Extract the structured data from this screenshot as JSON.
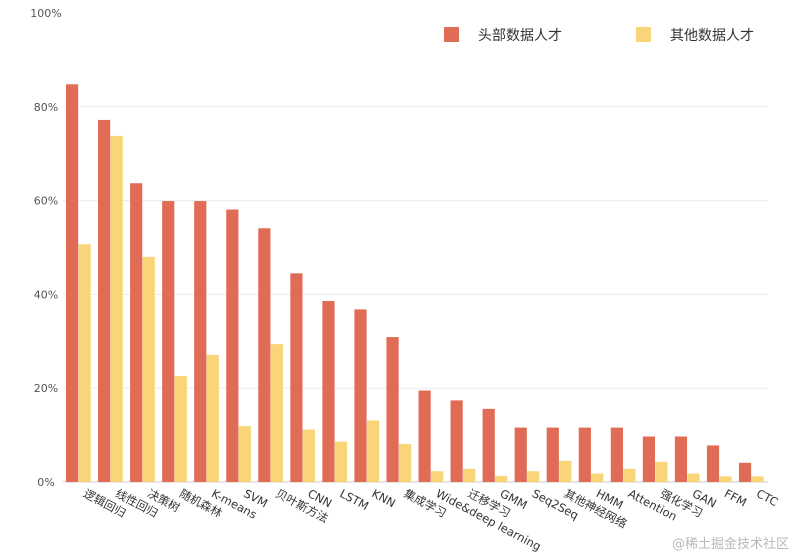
{
  "chart_data": {
    "type": "bar",
    "categories": [
      "逻辑回归",
      "线性回归",
      "决策树",
      "随机森林",
      "K-means",
      "SVM",
      "贝叶斯方法",
      "CNN",
      "LSTM",
      "KNN",
      "集成学习",
      "Wide&deep learning",
      "迁移学习",
      "GMM",
      "Seq2Seq",
      "其他神经网络",
      "HMM",
      "Attention",
      "强化学习",
      "GAN",
      "FFM",
      "CTC"
    ],
    "series": [
      {
        "name": "头部数据人才",
        "color": "#e06c55",
        "values": [
          84.8,
          77.2,
          63.7,
          59.9,
          59.9,
          58.1,
          54.1,
          44.5,
          38.6,
          36.8,
          30.9,
          19.5,
          17.4,
          15.6,
          11.6,
          11.6,
          11.6,
          11.6,
          9.7,
          9.7,
          7.8,
          4.1
        ]
      },
      {
        "name": "其他数据人才",
        "color": "#f9d57a",
        "values": [
          50.7,
          73.8,
          48.0,
          22.6,
          27.1,
          11.9,
          29.4,
          11.2,
          8.6,
          13.1,
          8.1,
          2.3,
          2.8,
          1.3,
          2.3,
          4.5,
          1.8,
          2.8,
          4.3,
          1.8,
          1.2,
          1.2
        ]
      }
    ],
    "ylim": [
      0,
      100
    ],
    "yticks": [
      "0%",
      "20%",
      "40%",
      "60%",
      "80%",
      "100%"
    ],
    "grid": true,
    "legend_position": "top-right"
  },
  "watermark": "@稀土掘金技术社区"
}
